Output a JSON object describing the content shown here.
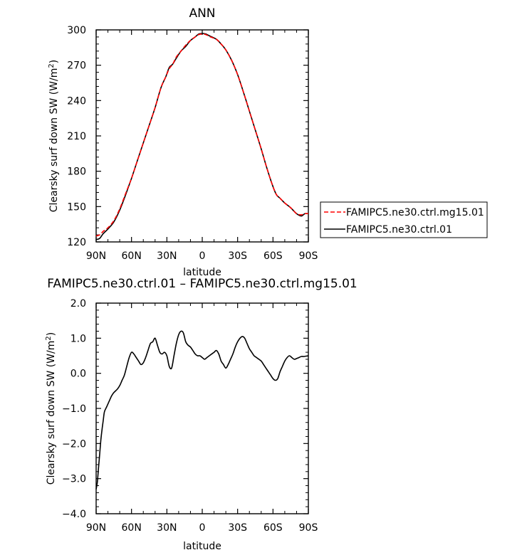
{
  "chart_data": [
    {
      "type": "line",
      "title": "ANN",
      "xlabel": "latitude",
      "ylabel": "Clearsky surf down SW (W/m²)",
      "xlim": [
        90,
        -90
      ],
      "ylim": [
        120,
        300
      ],
      "xticks": [
        90,
        60,
        30,
        0,
        -30,
        -60,
        -90
      ],
      "xtick_labels": [
        "90N",
        "60N",
        "30N",
        "0",
        "30S",
        "60S",
        "90S"
      ],
      "yticks": [
        120,
        150,
        180,
        210,
        240,
        270,
        300
      ],
      "ytick_labels": [
        "120",
        "150",
        "180",
        "210",
        "240",
        "270",
        "300"
      ],
      "legend": "right",
      "series": [
        {
          "name": "FAMIPC5.ne30.ctrl.mg15.01",
          "color": "#ff0000",
          "dash": "dashed",
          "x": [
            90,
            87,
            84,
            80,
            75,
            70,
            65,
            60,
            55,
            50,
            45,
            40,
            35,
            31,
            28,
            25,
            22,
            18,
            14,
            10,
            6,
            3,
            0,
            -3,
            -7,
            -12,
            -16,
            -20,
            -25,
            -30,
            -35,
            -40,
            -45,
            -50,
            -55,
            -60,
            -63,
            -66,
            -70,
            -75,
            -80,
            -84,
            -87,
            -90
          ],
          "y": [
            125,
            126,
            129,
            132,
            138,
            148,
            161,
            174,
            189,
            204,
            219,
            234,
            251,
            260,
            267,
            271,
            277,
            282,
            287,
            291,
            294,
            296,
            296.5,
            296,
            294,
            292,
            288,
            283,
            274,
            262,
            247,
            231,
            215,
            199,
            182,
            167,
            160,
            157,
            153,
            149,
            144,
            143,
            144,
            144
          ]
        },
        {
          "name": "FAMIPC5.ne30.ctrl.01",
          "color": "#000000",
          "dash": "solid",
          "x": [
            90,
            87,
            84,
            80,
            75,
            70,
            65,
            60,
            55,
            50,
            45,
            40,
            35,
            31,
            28,
            25,
            22,
            18,
            14,
            10,
            6,
            3,
            0,
            -3,
            -7,
            -12,
            -16,
            -20,
            -25,
            -30,
            -35,
            -40,
            -45,
            -50,
            -55,
            -60,
            -63,
            -66,
            -70,
            -75,
            -80,
            -84,
            -87,
            -90
          ],
          "y": [
            122,
            123,
            127,
            131,
            137,
            147,
            160,
            174,
            189,
            204,
            219,
            234,
            251,
            260,
            268,
            271,
            276,
            282,
            286,
            291,
            294,
            296.5,
            297,
            296.5,
            294.5,
            292,
            288,
            283,
            274,
            262,
            247,
            231,
            215,
            199,
            182,
            167,
            160,
            157,
            153,
            149,
            144,
            142,
            144,
            144
          ]
        }
      ]
    },
    {
      "type": "line",
      "title": "FAMIPC5.ne30.ctrl.01 – FAMIPC5.ne30.ctrl.mg15.01",
      "xlabel": "latitude",
      "ylabel": "Clearsky surf down SW (W/m²)",
      "xlim": [
        90,
        -90
      ],
      "ylim": [
        -4.0,
        2.0
      ],
      "xticks": [
        90,
        60,
        30,
        0,
        -30,
        -60,
        -90
      ],
      "xtick_labels": [
        "90N",
        "60N",
        "30N",
        "0",
        "30S",
        "60S",
        "90S"
      ],
      "yticks": [
        -4.0,
        -3.0,
        -2.0,
        -1.0,
        0.0,
        1.0,
        2.0
      ],
      "ytick_labels": [
        "−4.0",
        "−3.0",
        "−2.0",
        "−1.0",
        "0.0",
        "1.0",
        "2.0"
      ],
      "series": [
        {
          "color": "#000000",
          "dash": "solid",
          "x": [
            90,
            89,
            88,
            87,
            86,
            85,
            84,
            83,
            81,
            79,
            77,
            75,
            72,
            70,
            68,
            66,
            64,
            62,
            60,
            58,
            56,
            54,
            52,
            50,
            48,
            46,
            44,
            42,
            40,
            38,
            36,
            34,
            32,
            30,
            28,
            26,
            24,
            22,
            20,
            18,
            16,
            14,
            12,
            10,
            8,
            6,
            4,
            2,
            0,
            -2,
            -4,
            -6,
            -8,
            -10,
            -12,
            -14,
            -16,
            -18,
            -20,
            -22,
            -24,
            -26,
            -28,
            -30,
            -32,
            -34,
            -36,
            -38,
            -40,
            -42,
            -44,
            -46,
            -48,
            -50,
            -52,
            -54,
            -56,
            -58,
            -60,
            -62,
            -64,
            -66,
            -68,
            -70,
            -72,
            -74,
            -76,
            -78,
            -80,
            -82,
            -84,
            -86,
            -88,
            -90
          ],
          "y": [
            -3.3,
            -3.1,
            -2.7,
            -2.3,
            -1.9,
            -1.6,
            -1.35,
            -1.1,
            -0.95,
            -0.8,
            -0.65,
            -0.55,
            -0.45,
            -0.35,
            -0.2,
            -0.05,
            0.2,
            0.45,
            0.6,
            0.55,
            0.45,
            0.35,
            0.25,
            0.3,
            0.45,
            0.65,
            0.85,
            0.9,
            1.0,
            0.8,
            0.6,
            0.55,
            0.6,
            0.5,
            0.2,
            0.15,
            0.5,
            0.85,
            1.1,
            1.2,
            1.15,
            0.9,
            0.8,
            0.75,
            0.65,
            0.55,
            0.5,
            0.5,
            0.45,
            0.4,
            0.45,
            0.5,
            0.55,
            0.6,
            0.65,
            0.55,
            0.35,
            0.25,
            0.15,
            0.25,
            0.4,
            0.55,
            0.75,
            0.9,
            1.0,
            1.05,
            1.0,
            0.85,
            0.7,
            0.6,
            0.5,
            0.45,
            0.4,
            0.35,
            0.25,
            0.15,
            0.05,
            -0.05,
            -0.15,
            -0.2,
            -0.15,
            0.05,
            0.2,
            0.35,
            0.45,
            0.5,
            0.45,
            0.4,
            0.42,
            0.45,
            0.48,
            0.48,
            0.49,
            0.5
          ]
        }
      ]
    }
  ]
}
